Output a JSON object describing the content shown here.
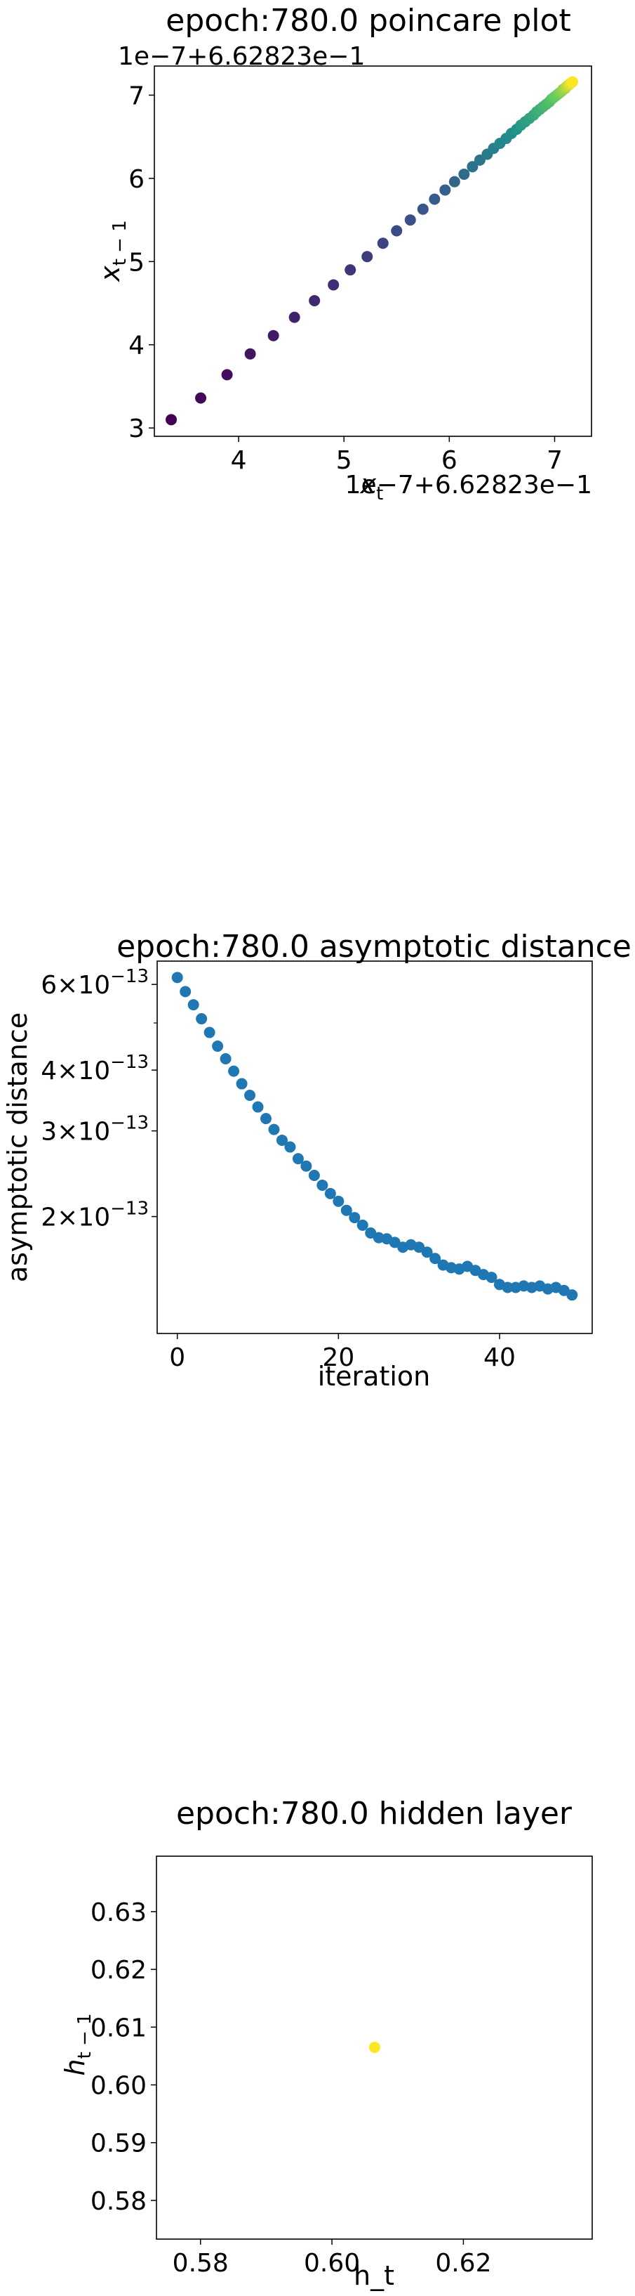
{
  "chart_data": [
    {
      "type": "scatter",
      "title": "epoch:780.0 poincare plot",
      "xlabel": "x_t",
      "ylabel": "x_{t-1}",
      "x_offset_text": "1e−7+6.62823e−1",
      "y_offset_text": "1e−7+6.62823e−1",
      "colormap": "viridis",
      "xlim": [
        3.2,
        7.35
      ],
      "ylim": [
        2.9,
        7.35
      ],
      "x_ticks": [
        4,
        5,
        6,
        7
      ],
      "y_ticks": [
        3,
        4,
        5,
        6,
        7
      ],
      "x_tick_labels": [
        "4",
        "5",
        "6",
        "7"
      ],
      "y_tick_labels": [
        "3",
        "4",
        "5",
        "6",
        "7"
      ],
      "points_x": [
        3.36,
        3.64,
        3.89,
        4.11,
        4.33,
        4.53,
        4.72,
        4.9,
        5.06,
        5.22,
        5.37,
        5.5,
        5.63,
        5.75,
        5.86,
        5.96,
        6.05,
        6.14,
        6.22,
        6.29,
        6.36,
        6.42,
        6.48,
        6.54,
        6.59,
        6.64,
        6.68,
        6.72,
        6.76,
        6.8,
        6.83,
        6.86,
        6.89,
        6.92,
        6.95,
        6.97,
        6.99,
        7.01,
        7.03,
        7.05,
        7.07,
        7.08,
        7.1,
        7.11,
        7.12,
        7.13,
        7.14,
        7.15,
        7.16,
        7.17
      ],
      "points_y": [
        3.1,
        3.36,
        3.64,
        3.89,
        4.11,
        4.33,
        4.53,
        4.72,
        4.9,
        5.06,
        5.22,
        5.37,
        5.5,
        5.63,
        5.75,
        5.86,
        5.96,
        6.05,
        6.14,
        6.22,
        6.29,
        6.36,
        6.42,
        6.48,
        6.54,
        6.59,
        6.64,
        6.68,
        6.72,
        6.76,
        6.8,
        6.83,
        6.86,
        6.89,
        6.92,
        6.95,
        6.97,
        6.99,
        7.01,
        7.03,
        7.05,
        7.07,
        7.08,
        7.1,
        7.11,
        7.12,
        7.13,
        7.14,
        7.15,
        7.16
      ]
    },
    {
      "type": "scatter",
      "title": "epoch:780.0 asymptotic distance",
      "xlabel": "iteration",
      "ylabel": "asymptotic distance",
      "yscale": "log",
      "color": "#1f77b4",
      "xlim": [
        -2.5,
        51.5
      ],
      "ylim": [
        1.15e-13,
        6.7e-13
      ],
      "x_ticks": [
        0,
        20,
        40
      ],
      "x_tick_labels": [
        "0",
        "20",
        "40"
      ],
      "y_ticks": [
        6e-13,
        4e-13,
        3e-13,
        2e-13
      ],
      "y_tick_mantissa": [
        "6",
        "4",
        "3",
        "2"
      ],
      "y_tick_exponent": "−13",
      "x": [
        0,
        1,
        2,
        3,
        4,
        5,
        6,
        7,
        8,
        9,
        10,
        11,
        12,
        13,
        14,
        15,
        16,
        17,
        18,
        19,
        20,
        21,
        22,
        23,
        24,
        25,
        26,
        27,
        28,
        29,
        30,
        31,
        32,
        33,
        34,
        35,
        36,
        37,
        38,
        39,
        40,
        41,
        42,
        43,
        44,
        45,
        46,
        47,
        48,
        49
      ],
      "y": [
        6.2e-13,
        5.8e-13,
        5.45e-13,
        5.1e-13,
        4.78e-13,
        4.48e-13,
        4.22e-13,
        3.98e-13,
        3.75e-13,
        3.55e-13,
        3.36e-13,
        3.18e-13,
        3.02e-13,
        2.87e-13,
        2.78e-13,
        2.63e-13,
        2.54e-13,
        2.43e-13,
        2.32e-13,
        2.23e-13,
        2.15e-13,
        2.06e-13,
        1.99e-13,
        1.92e-13,
        1.85e-13,
        1.81e-13,
        1.8e-13,
        1.77e-13,
        1.73e-13,
        1.75e-13,
        1.73e-13,
        1.69e-13,
        1.64e-13,
        1.59e-13,
        1.57e-13,
        1.56e-13,
        1.58e-13,
        1.55e-13,
        1.52e-13,
        1.5e-13,
        1.45e-13,
        1.43e-13,
        1.43e-13,
        1.44e-13,
        1.43e-13,
        1.44e-13,
        1.42e-13,
        1.43e-13,
        1.41e-13,
        1.38e-13
      ]
    },
    {
      "type": "scatter",
      "title": "epoch:780.0 hidden layer",
      "xlabel": "h_t",
      "ylabel": "h_{t-1}",
      "color": "#fde725",
      "xlim": [
        0.5733,
        0.6396
      ],
      "ylim": [
        0.5733,
        0.6396
      ],
      "x_ticks": [
        0.58,
        0.6,
        0.62
      ],
      "x_tick_labels": [
        "0.58",
        "0.60",
        "0.62"
      ],
      "y_ticks": [
        0.58,
        0.59,
        0.6,
        0.61,
        0.62,
        0.63
      ],
      "y_tick_labels": [
        "0.58",
        "0.59",
        "0.60",
        "0.61",
        "0.62",
        "0.63"
      ],
      "points_x": [
        0.6065
      ],
      "points_y": [
        0.6065
      ]
    }
  ]
}
